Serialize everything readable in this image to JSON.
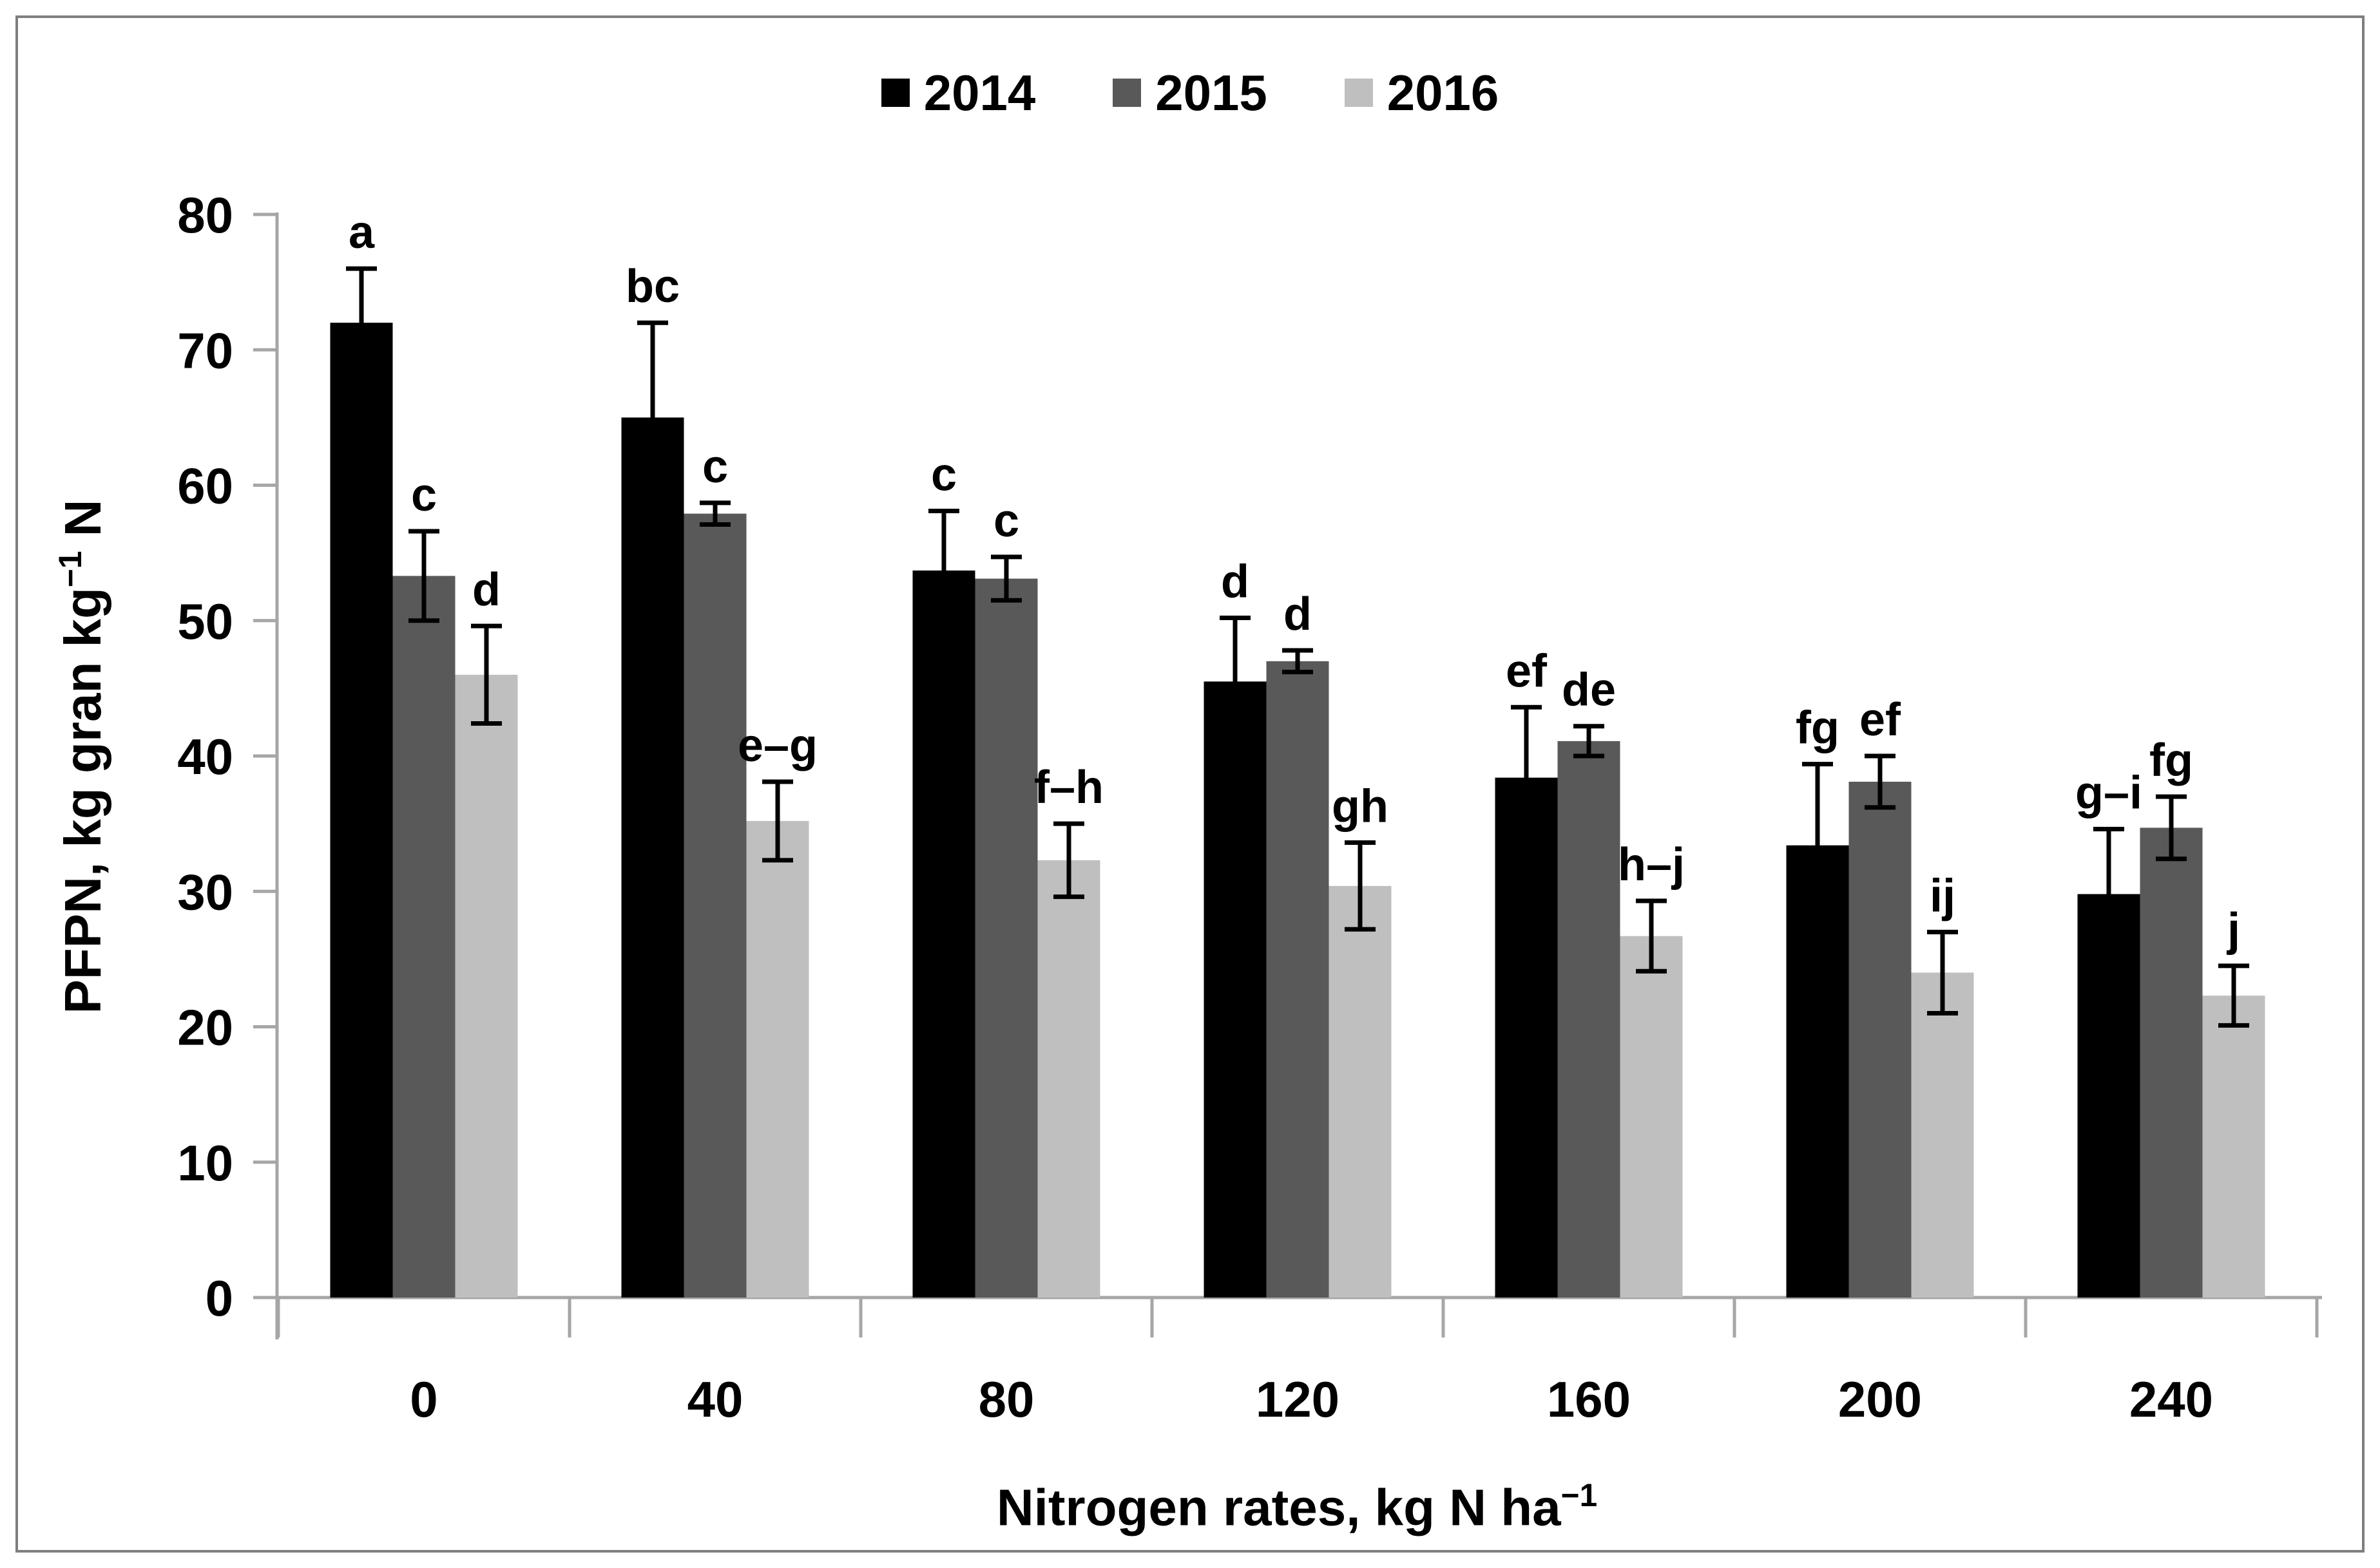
{
  "frame": {
    "border_color": "#7f7f7f"
  },
  "legend": {
    "items": [
      {
        "label": "2014",
        "color": "#000000"
      },
      {
        "label": "2015",
        "color": "#595959"
      },
      {
        "label": "2016",
        "color": "#bfbfbf"
      }
    ]
  },
  "y_axis": {
    "title_main": "PFPN, kg gran kg",
    "title_sup": "−1",
    "title_tail": " N",
    "ticks": [
      0,
      10,
      20,
      30,
      40,
      50,
      60,
      70,
      80
    ]
  },
  "x_axis": {
    "title_main": "Nitrogen rates, kg N ha",
    "title_sup": "−1"
  },
  "chart_data": {
    "type": "bar",
    "title": "",
    "categories": [
      "0",
      "40",
      "80",
      "120",
      "160",
      "200",
      "240"
    ],
    "series": [
      {
        "name": "2014",
        "color": "#000000",
        "values": [
          72.0,
          65.0,
          53.7,
          45.5,
          38.4,
          33.4,
          29.8
        ],
        "errors": [
          4.0,
          7.0,
          4.4,
          4.7,
          5.2,
          6.0,
          4.8
        ],
        "letters": [
          "a",
          "bc",
          "c",
          "d",
          "ef",
          "fg",
          "g–i"
        ]
      },
      {
        "name": "2015",
        "color": "#595959",
        "values": [
          53.3,
          57.9,
          53.1,
          47.0,
          41.1,
          38.1,
          34.7
        ],
        "errors": [
          3.3,
          0.8,
          1.6,
          0.8,
          1.1,
          1.9,
          2.3
        ],
        "letters": [
          "c",
          "c",
          "c",
          "d",
          "de",
          "ef",
          "fg"
        ]
      },
      {
        "name": "2016",
        "color": "#bfbfbf",
        "values": [
          46.0,
          35.2,
          32.3,
          30.4,
          26.7,
          24.0,
          22.3
        ],
        "errors": [
          3.6,
          2.9,
          2.7,
          3.2,
          2.6,
          3.0,
          2.2
        ],
        "letters": [
          "d",
          "e–g",
          "f–h",
          "gh",
          "h–j",
          "ij",
          "j"
        ]
      }
    ],
    "xlabel": "Nitrogen rates, kg N ha−1",
    "ylabel": "PFPN, kg gran kg−1 N",
    "ylim": [
      0,
      80
    ],
    "y_tick_step": 10,
    "legend_position": "top",
    "grid": false,
    "error_bars": true,
    "annotations": "significance letters above error bars",
    "axis_color": "#a6a6a6"
  }
}
